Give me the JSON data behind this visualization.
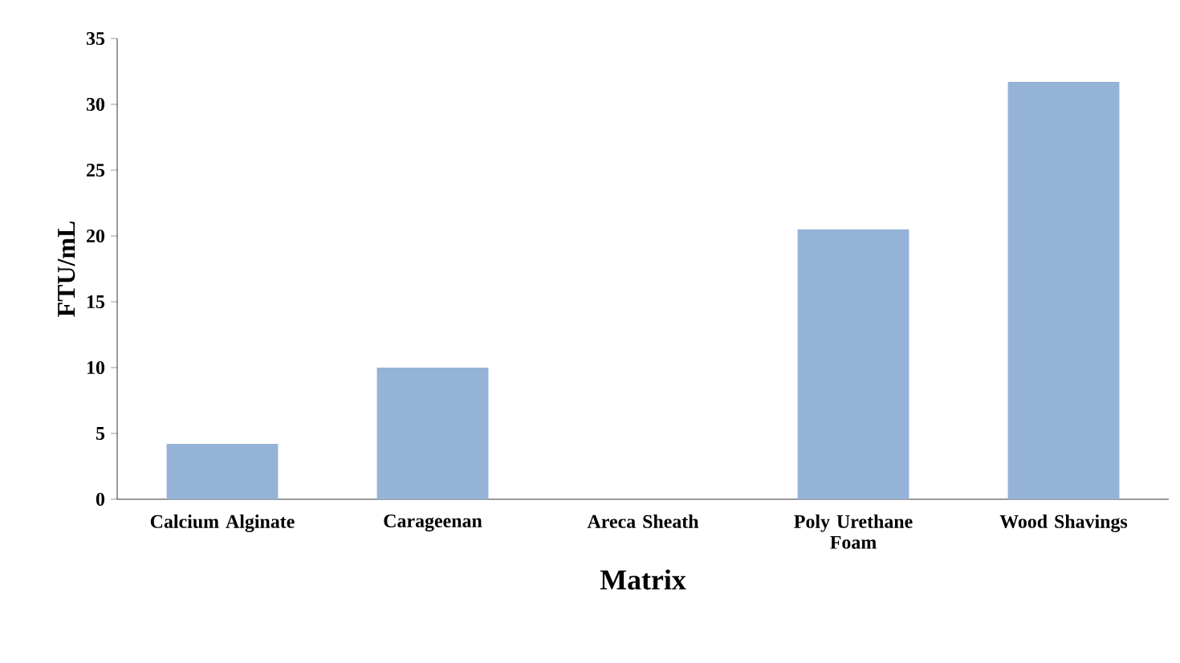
{
  "chart_data": {
    "type": "bar",
    "xlabel": "Matrix",
    "ylabel": "FTU/mL",
    "categories": [
      "Calcium Alginate",
      "Carageenan",
      "Areca Sheath",
      "Poly Urethane Foam",
      "Wood Shavings"
    ],
    "values": [
      4.2,
      10,
      0,
      20.5,
      31.7
    ],
    "color": "#95b3d7",
    "ylim": [
      0,
      35
    ],
    "yticks": [
      0,
      5,
      10,
      15,
      20,
      25,
      30,
      35
    ]
  }
}
